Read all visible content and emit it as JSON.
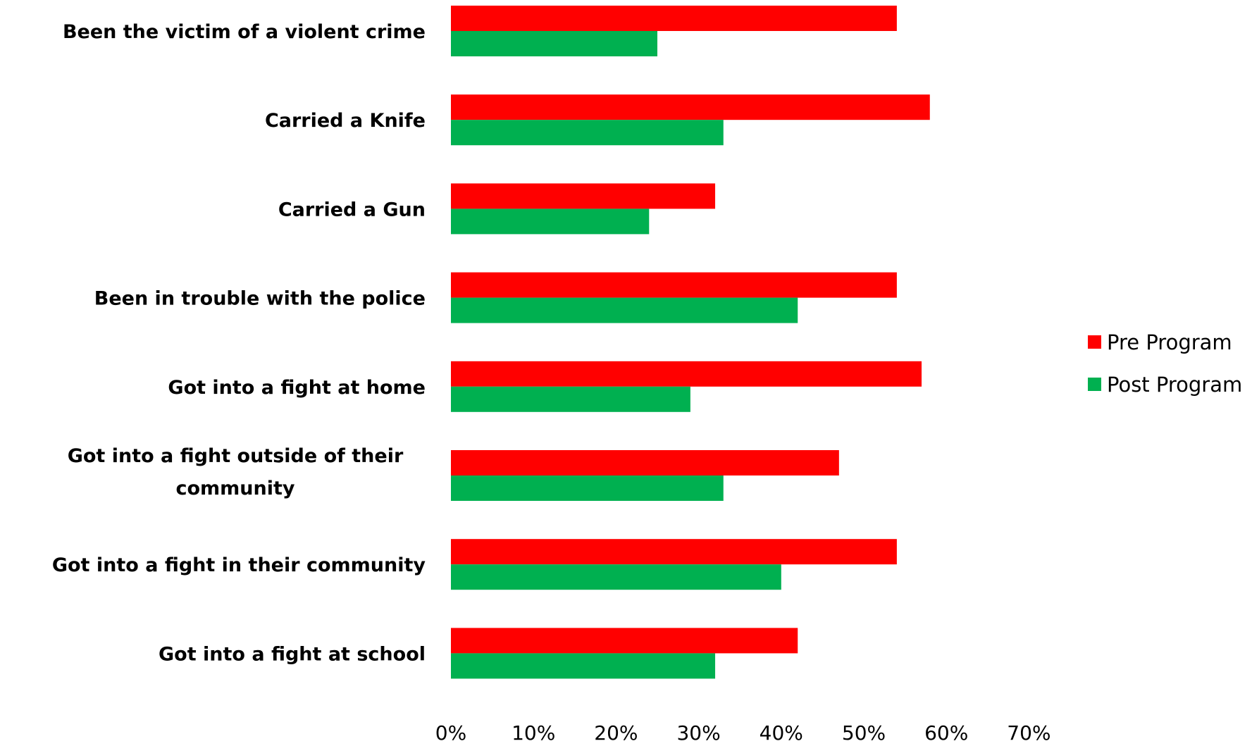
{
  "chart_data": {
    "type": "bar",
    "orientation": "horizontal",
    "categories": [
      [
        "Been the victim of a violent crime"
      ],
      [
        "Carried a Knife"
      ],
      [
        "Carried a Gun"
      ],
      [
        "Been in trouble with the police"
      ],
      [
        "Got into a fight at home"
      ],
      [
        "Got into a fight outside of their",
        "community"
      ],
      [
        "Got into a fight in their community"
      ],
      [
        "Got into a fight at school"
      ]
    ],
    "series": [
      {
        "name": "Pre Program",
        "color": "#ff0000",
        "values": [
          54,
          58,
          32,
          54,
          57,
          47,
          54,
          42
        ]
      },
      {
        "name": "Post Program",
        "color": "#00b050",
        "values": [
          25,
          33,
          24,
          42,
          29,
          33,
          40,
          32
        ]
      }
    ],
    "xlim": [
      0,
      70
    ],
    "xticks": [
      0,
      10,
      20,
      30,
      40,
      50,
      60,
      70
    ],
    "tick_format": "percent",
    "title": "",
    "xlabel": "",
    "ylabel": "",
    "grid": false,
    "legend": "right"
  }
}
